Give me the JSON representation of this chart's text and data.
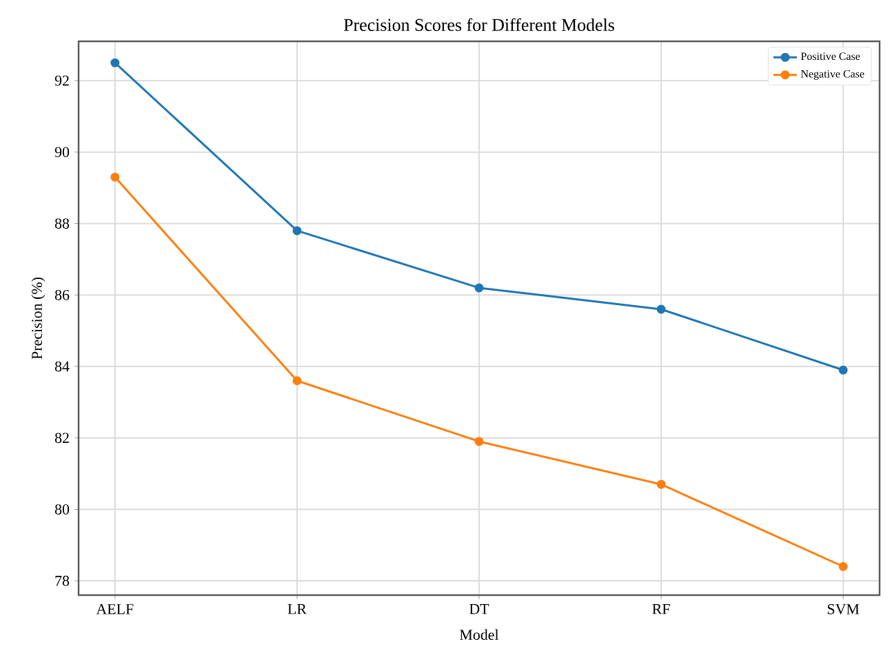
{
  "chart_data": {
    "type": "line",
    "title": "Precision Scores for Different Models",
    "xlabel": "Model",
    "ylabel": "Precision (%)",
    "categories": [
      "AELF",
      "LR",
      "DT",
      "RF",
      "SVM"
    ],
    "series": [
      {
        "name": "Positive Case",
        "color": "#1f77b4",
        "values": [
          92.5,
          87.8,
          86.2,
          85.6,
          83.9
        ]
      },
      {
        "name": "Negative Case",
        "color": "#ff7f0e",
        "values": [
          89.3,
          83.6,
          81.9,
          80.7,
          78.4
        ]
      }
    ],
    "ylim": [
      77.6,
      93.1
    ],
    "yticks": [
      78,
      80,
      82,
      84,
      86,
      88,
      90,
      92
    ],
    "grid": true,
    "legend": "top right",
    "marker": "circle",
    "line_style": "solid"
  }
}
